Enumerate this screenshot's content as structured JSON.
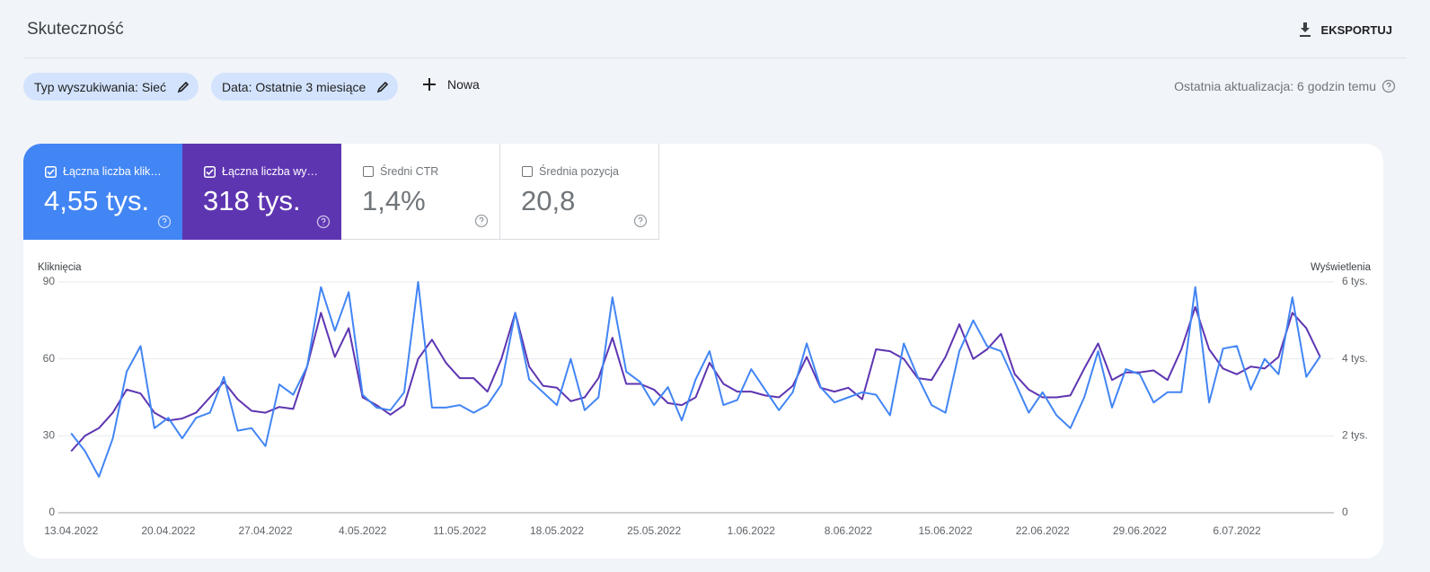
{
  "header": {
    "title": "Skuteczność",
    "export": "EKSPORTUJ"
  },
  "filters": {
    "chips": [
      "Typ wyszukiwania: Sieć",
      "Data: Ostatnie 3 miesiące"
    ],
    "new": "Nowa",
    "last_update": "Ostatnia aktualizacja: 6 godzin temu"
  },
  "metrics": [
    {
      "value": "4,55 tys.",
      "checked": true
    },
    {
      "value": "318 tys.",
      "checked": true
    },
    {
      "label": "Średni CTR",
      "value": "1,4%",
      "checked": false
    },
    {
      "label": "Średnia pozycja",
      "value": "20,8",
      "checked": false
    }
  ],
  "chart_data": {
    "type": "line",
    "y_label": "Kliknięcia",
    "y2_label": "Wyświetlenia",
    "categories": [
      "13.04.2022",
      null,
      null,
      null,
      null,
      null,
      null,
      "20.04.2022",
      null,
      null,
      null,
      null,
      null,
      null,
      "27.04.2022",
      null,
      null,
      null,
      null,
      null,
      null,
      "4.05.2022",
      null,
      null,
      null,
      null,
      null,
      null,
      "11.05.2022",
      null,
      null,
      null,
      null,
      null,
      null,
      "18.05.2022",
      null,
      null,
      null,
      null,
      null,
      null,
      "25.05.2022",
      null,
      null,
      null,
      null,
      null,
      null,
      "1.06.2022",
      null,
      null,
      null,
      null,
      null,
      null,
      "8.06.2022",
      null,
      null,
      null,
      null,
      null,
      null,
      "15.06.2022",
      null,
      null,
      null,
      null,
      null,
      null,
      "22.06.2022",
      null,
      null,
      null,
      null,
      null,
      null,
      "29.06.2022",
      null,
      null,
      null,
      null,
      null,
      null,
      "6.07.2022",
      null,
      null,
      null,
      null,
      null,
      null
    ],
    "series": [
      {
        "name": "Łączna liczba wy…",
        "color": "#5e35b1",
        "axis": "y2",
        "values": [
          1600,
          2000,
          2200,
          2600,
          3200,
          3100,
          2600,
          2400,
          2450,
          2600,
          3000,
          3400,
          2950,
          2650,
          2600,
          2750,
          2700,
          3800,
          5200,
          4050,
          4800,
          3000,
          2800,
          2550,
          2800,
          4000,
          4500,
          3900,
          3500,
          3500,
          3150,
          4000,
          5200,
          3800,
          3300,
          3250,
          2900,
          3000,
          3500,
          4550,
          3350,
          3350,
          3200,
          2850,
          2800,
          3000,
          3900,
          3350,
          3150,
          3150,
          3050,
          3000,
          3300,
          4050,
          3250,
          3150,
          3250,
          2950,
          4250,
          4200,
          4000,
          3500,
          3450,
          4050,
          4900,
          4000,
          4250,
          4650,
          3600,
          3200,
          3000,
          3000,
          3050,
          3750,
          4400,
          3450,
          3650,
          3650,
          3700,
          3450,
          4250,
          5350,
          4250,
          3750,
          3600,
          3800,
          3750,
          4050,
          5200,
          4800,
          4050
        ]
      },
      {
        "name": "Łączna liczba klik…",
        "color": "#4285f4",
        "values": [
          31,
          24,
          14,
          29,
          55,
          65,
          33,
          37,
          29,
          37,
          39,
          53,
          32,
          33,
          26,
          50,
          46,
          57,
          88,
          71,
          86,
          46,
          41,
          40,
          47,
          90,
          41,
          41,
          42,
          39,
          42,
          50,
          78,
          52,
          47,
          42,
          60,
          40,
          45,
          84,
          55,
          51,
          42,
          49,
          36,
          52,
          63,
          42,
          44,
          56,
          48,
          40,
          47,
          66,
          49,
          43,
          45,
          47,
          46,
          38,
          66,
          53,
          42,
          39,
          63,
          75,
          65,
          63,
          51,
          39,
          47,
          38,
          33,
          45,
          63,
          41,
          56,
          54,
          43,
          47,
          47,
          88,
          43,
          64,
          65,
          48,
          60,
          54,
          84,
          53,
          61
        ]
      }
    ],
    "ylim": [
      0,
      90
    ],
    "yticks": [
      0,
      30,
      60,
      90
    ],
    "y2lim": [
      0,
      6000
    ],
    "y2ticks": [
      0,
      {
        "value": 2000,
        "label": "2 tys."
      },
      {
        "value": 4000,
        "label": "4 tys."
      },
      {
        "value": 6000,
        "label": "6 tys."
      }
    ],
    "grid": true
  }
}
